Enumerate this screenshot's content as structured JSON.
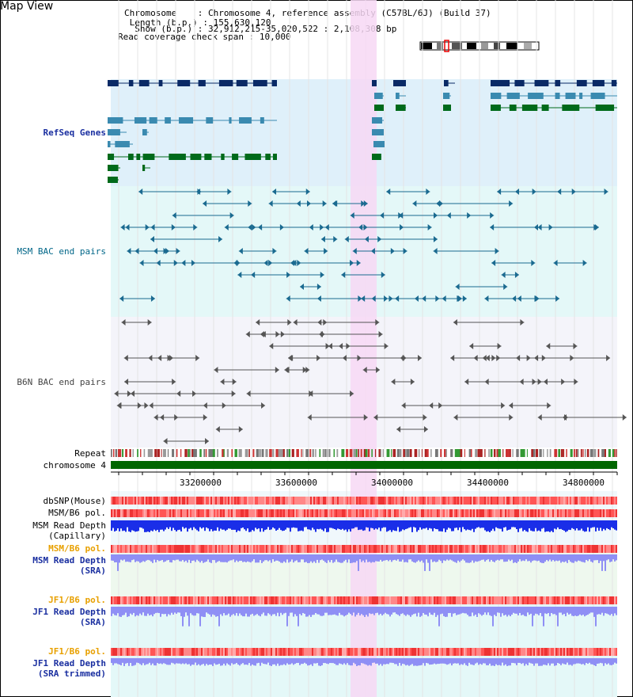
{
  "app_title": "Map View",
  "header": {
    "chromosome_label": "Chromosome",
    "chromosome_value": "Chromosome 4, reference assembly (C57BL/6J) (Build 37)",
    "length_label": "Length (b.p.)",
    "length_value": "155,630,120",
    "show_label": "Show (b.p.)",
    "show_value": "32,912,215-35,020,522 : 2,108,308 bp",
    "coverage_label": "Read coverage check span",
    "coverage_value": "10,000"
  },
  "tracks": {
    "refseq": "RefSeq Genes",
    "msm_bac": "MSM BAC end pairs",
    "b6n_bac": "B6N BAC end pairs",
    "repeat": "Repeat",
    "chromosome": "chromosome 4",
    "dbsnp": "dbSNP(Mouse)",
    "msm_b6_pol": "MSM/B6 pol.",
    "msm_read_depth_cap_1": "MSM Read Depth",
    "msm_read_depth_cap_2": "(Capillary)",
    "msm_b6_pol_2": "MSM/B6 pol.",
    "msm_read_depth_sra_1": "MSM Read Depth",
    "msm_read_depth_sra_2": "(SRA)",
    "jf1_b6_pol": "JF1/B6 pol.",
    "jf1_read_depth_sra_1": "JF1 Read Depth",
    "jf1_read_depth_sra_2": "(SRA)",
    "jf1_b6_pol_2": "JF1/B6 pol.",
    "jf1_read_depth_trim_1": "JF1 Read Depth",
    "jf1_read_depth_trim_2": "(SRA trimmed)"
  },
  "axis_ticks": [
    "33200000",
    "33600000",
    "34000000",
    "34400000",
    "34800000"
  ],
  "colors": {
    "refseq_label": "#1a2fa0",
    "msm_label": "#006688",
    "b6n_label": "#444444",
    "orange_label": "#e8a000",
    "blue_label": "#1a2fa0",
    "highlight": "#f7d8f4",
    "chromosome_bar": "#006600",
    "depth_blue": "#1a2ee8",
    "depth_light_blue": "#8f8ff5"
  }
}
